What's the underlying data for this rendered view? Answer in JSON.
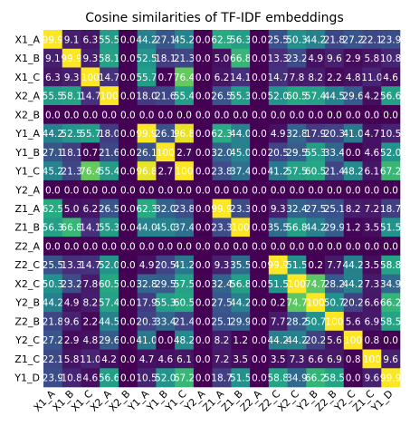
{
  "chart_data": {
    "type": "heatmap",
    "title": "Cosine similarities of TF-IDF embeddings",
    "row_labels": [
      "X1_A",
      "X1_B",
      "X1_C",
      "X2_A",
      "X2_B",
      "Y1_A",
      "Y1_B",
      "Y1_C",
      "Y2_A",
      "Z1_A",
      "Z1_B",
      "Z2_A",
      "Z2_C",
      "X2_C",
      "Y2_B",
      "Z2_B",
      "Y2_C",
      "Z1_C",
      "Y1_D"
    ],
    "col_labels": [
      "X1_A",
      "X1_B",
      "X1_C",
      "X2_A",
      "X2_B",
      "Y1_A",
      "Y1_B",
      "Y1_C",
      "Y2_A",
      "Z1_A",
      "Z1_B",
      "Z2_A",
      "Z2_C",
      "X2_C",
      "Y2_B",
      "Z2_B",
      "Y2_C",
      "Z1_C",
      "Y1_D"
    ],
    "cell_text": [
      [
        "99.9",
        "9.1",
        "6.3",
        "55.5",
        "0.0",
        "44.2",
        "27.1",
        "45.2",
        "0.0",
        "62.5",
        "56.3",
        "0.0",
        "25.5",
        "50.3",
        "44.2",
        "21.8",
        "27.2",
        "22.1",
        "23.9"
      ],
      [
        "9.1",
        "99.9",
        "9.3",
        "58.1",
        "0.0",
        "52.5",
        "18.1",
        "21.3",
        "0.0",
        "5.0",
        "66.8",
        "0.0",
        "13.3",
        "23.2",
        "4.9",
        "9.6",
        "2.9",
        "5.8",
        "10.8"
      ],
      [
        "6.3",
        "9.3",
        "100",
        "14.7",
        "0.0",
        "55.7",
        "0.7",
        "76.4",
        "0.0",
        "6.2",
        "14.1",
        "0.0",
        "14.7",
        "7.8",
        "8.2",
        "2.2",
        "4.8",
        "11.0",
        "4.6"
      ],
      [
        "55.5",
        "58.1",
        "14.7",
        "100",
        "0.0",
        "18.0",
        "21.6",
        "55.4",
        "0.0",
        "26.5",
        "55.3",
        "0.0",
        "52.0",
        "60.5",
        "57.4",
        "44.5",
        "29.6",
        "4.2",
        "56.6"
      ],
      [
        "0.0",
        "0.0",
        "0.0",
        "0.0",
        "0.0",
        "0.0",
        "0.0",
        "0.0",
        "0.0",
        "0.0",
        "0.0",
        "0.0",
        "0.0",
        "0.0",
        "0.0",
        "0.0",
        "0.0",
        "0.0",
        "0.0"
      ],
      [
        "44.2",
        "52.5",
        "55.7",
        "18.0",
        "0.0",
        "99.9",
        "26.1",
        "96.8",
        "0.0",
        "62.3",
        "44.0",
        "0.0",
        "4.9",
        "32.8",
        "17.9",
        "20.3",
        "41.0",
        "4.7",
        "10.5"
      ],
      [
        "27.1",
        "18.1",
        "0.7",
        "21.6",
        "0.0",
        "26.1",
        "100",
        "2.7",
        "0.0",
        "32.0",
        "45.0",
        "0.0",
        "20.5",
        "29.5",
        "55.3",
        "33.4",
        "0.0",
        "4.6",
        "52.0"
      ],
      [
        "45.2",
        "21.3",
        "76.4",
        "55.4",
        "0.0",
        "96.8",
        "2.7",
        "100",
        "0.0",
        "23.8",
        "37.4",
        "0.0",
        "41.2",
        "57.5",
        "60.5",
        "21.4",
        "48.2",
        "6.1",
        "67.2"
      ],
      [
        "0.0",
        "0.0",
        "0.0",
        "0.0",
        "0.0",
        "0.0",
        "0.0",
        "0.0",
        "0.0",
        "0.0",
        "0.0",
        "0.0",
        "0.0",
        "0.0",
        "0.0",
        "0.0",
        "0.0",
        "0.0",
        "0.0"
      ],
      [
        "62.5",
        "5.0",
        "6.2",
        "26.5",
        "0.0",
        "62.3",
        "32.0",
        "23.8",
        "0.0",
        "99.9",
        "23.3",
        "0.0",
        "9.3",
        "32.4",
        "27.5",
        "25.1",
        "8.2",
        "7.2",
        "18.7"
      ],
      [
        "56.3",
        "66.8",
        "14.1",
        "55.3",
        "0.0",
        "44.0",
        "45.0",
        "37.4",
        "0.0",
        "23.3",
        "100",
        "0.0",
        "35.5",
        "56.8",
        "44.2",
        "29.9",
        "1.2",
        "3.5",
        "51.5"
      ],
      [
        "0.0",
        "0.0",
        "0.0",
        "0.0",
        "0.0",
        "0.0",
        "0.0",
        "0.0",
        "0.0",
        "0.0",
        "0.0",
        "0.0",
        "0.0",
        "0.0",
        "0.0",
        "0.0",
        "0.0",
        "0.0",
        "0.0"
      ],
      [
        "25.5",
        "13.3",
        "14.7",
        "52.0",
        "0.0",
        "4.9",
        "20.5",
        "41.2",
        "0.0",
        "9.3",
        "35.5",
        "0.0",
        "99.9",
        "51.5",
        "0.2",
        "7.7",
        "44.2",
        "3.5",
        "58.8"
      ],
      [
        "50.3",
        "23.2",
        "7.8",
        "60.5",
        "0.0",
        "32.8",
        "29.5",
        "57.5",
        "0.0",
        "32.4",
        "56.8",
        "0.0",
        "51.5",
        "100",
        "74.7",
        "28.2",
        "44.2",
        "7.3",
        "34.9"
      ],
      [
        "44.2",
        "4.9",
        "8.2",
        "57.4",
        "0.0",
        "17.9",
        "55.3",
        "60.5",
        "0.0",
        "27.5",
        "44.2",
        "0.0",
        "0.2",
        "74.7",
        "100",
        "50.7",
        "20.2",
        "6.6",
        "66.2"
      ],
      [
        "21.8",
        "9.6",
        "2.2",
        "44.5",
        "0.0",
        "20.3",
        "33.4",
        "21.4",
        "0.0",
        "25.1",
        "29.9",
        "0.0",
        "7.7",
        "28.2",
        "50.7",
        "100",
        "5.6",
        "6.9",
        "58.5"
      ],
      [
        "27.2",
        "2.9",
        "4.8",
        "29.6",
        "0.0",
        "41.0",
        "0.0",
        "48.2",
        "0.0",
        "8.2",
        "1.2",
        "0.0",
        "44.2",
        "44.2",
        "20.2",
        "5.6",
        "100",
        "0.8",
        "0.0"
      ],
      [
        "22.1",
        "5.8",
        "11.0",
        "4.2",
        "0.0",
        "4.7",
        "4.6",
        "6.1",
        "0.0",
        "7.2",
        "3.5",
        "0.0",
        "3.5",
        "7.3",
        "6.6",
        "6.9",
        "0.8",
        "100",
        "9.6"
      ],
      [
        "23.9",
        "10.8",
        "4.6",
        "56.6",
        "0.0",
        "10.5",
        "52.0",
        "67.2",
        "0.0",
        "18.7",
        "51.5",
        "0.0",
        "58.8",
        "34.9",
        "66.2",
        "58.5",
        "0.0",
        "9.6",
        "99.9"
      ]
    ],
    "value_range": [
      0,
      100
    ],
    "colormap": "viridis",
    "colors": {
      "low": "#440154",
      "high": "#fde725",
      "cell_text": "#ffffff"
    },
    "grid": false
  }
}
